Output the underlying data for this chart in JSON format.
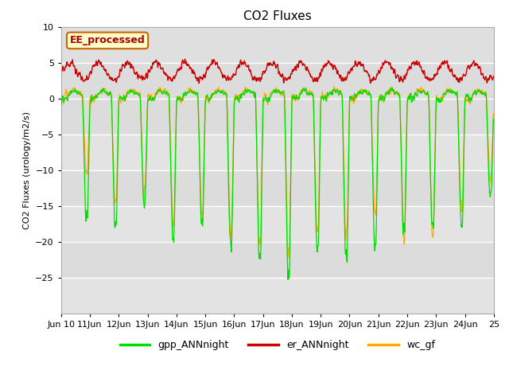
{
  "title": "CO2 Fluxes",
  "ylabel": "CO2 Fluxes (urology/m2/s)",
  "xlabel": "",
  "ylim": [
    -30,
    10
  ],
  "yticks": [
    -25,
    -20,
    -15,
    -10,
    -5,
    0,
    5,
    10
  ],
  "bg_color": "#dcdcdc",
  "stripe_color": "#e8e8e8",
  "fig_color": "#ffffff",
  "line_green": "#00dd00",
  "line_red": "#cc0000",
  "line_orange": "#ffaa00",
  "legend_label": "EE_processed",
  "legend_facecolor": "#ffffcc",
  "legend_edgecolor": "#cc6600",
  "series_labels": [
    "gpp_ANNnight",
    "er_ANNnight",
    "wc_gf"
  ],
  "n_days": 15,
  "start_day": 10,
  "points_per_day": 96,
  "title_fontsize": 11,
  "axis_fontsize": 8,
  "tick_fontsize": 8
}
